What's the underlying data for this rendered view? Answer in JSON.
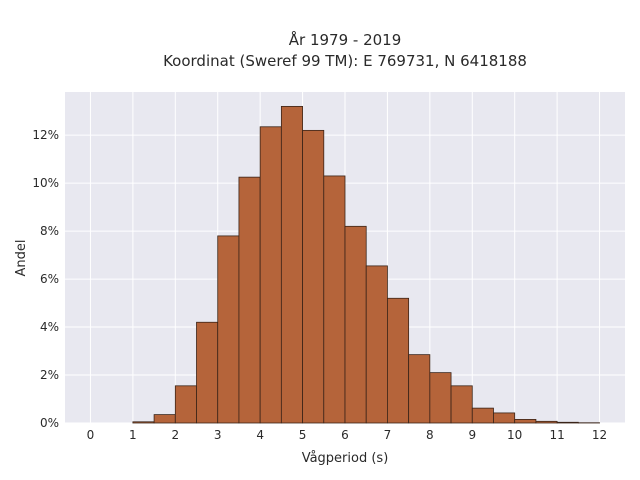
{
  "chart_data": {
    "type": "bar",
    "title_line1": "År 1979 - 2019",
    "title_line2": "Koordinat (Sweref 99 TM): E 769731, N 6418188",
    "xlabel": "Vågperiod (s)",
    "ylabel": "Andel",
    "xlim": [
      -0.6,
      12.6
    ],
    "ylim": [
      0,
      13.8
    ],
    "x_ticks": [
      0,
      1,
      2,
      3,
      4,
      5,
      6,
      7,
      8,
      9,
      10,
      11,
      12
    ],
    "y_ticks": [
      0,
      2,
      4,
      6,
      8,
      10,
      12
    ],
    "y_tick_suffix": "%",
    "bin_width": 0.5,
    "bins": [
      {
        "x0": 1.0,
        "value": 0.05
      },
      {
        "x0": 1.5,
        "value": 0.35
      },
      {
        "x0": 2.0,
        "value": 1.55
      },
      {
        "x0": 2.5,
        "value": 4.2
      },
      {
        "x0": 3.0,
        "value": 7.8
      },
      {
        "x0": 3.5,
        "value": 10.25
      },
      {
        "x0": 4.0,
        "value": 12.35
      },
      {
        "x0": 4.5,
        "value": 13.2
      },
      {
        "x0": 5.0,
        "value": 12.2
      },
      {
        "x0": 5.5,
        "value": 10.3
      },
      {
        "x0": 6.0,
        "value": 8.2
      },
      {
        "x0": 6.5,
        "value": 6.55
      },
      {
        "x0": 7.0,
        "value": 5.2
      },
      {
        "x0": 7.5,
        "value": 2.85
      },
      {
        "x0": 8.0,
        "value": 2.1
      },
      {
        "x0": 8.5,
        "value": 1.55
      },
      {
        "x0": 9.0,
        "value": 0.62
      },
      {
        "x0": 9.5,
        "value": 0.42
      },
      {
        "x0": 10.0,
        "value": 0.15
      },
      {
        "x0": 10.5,
        "value": 0.07
      },
      {
        "x0": 11.0,
        "value": 0.03
      },
      {
        "x0": 11.5,
        "value": 0.01
      }
    ],
    "grid": true,
    "colors": {
      "bar_fill": "#b5643a",
      "bar_edge": "#3a2418",
      "plot_bg": "#e8e8f0",
      "grid": "#ffffff"
    }
  }
}
